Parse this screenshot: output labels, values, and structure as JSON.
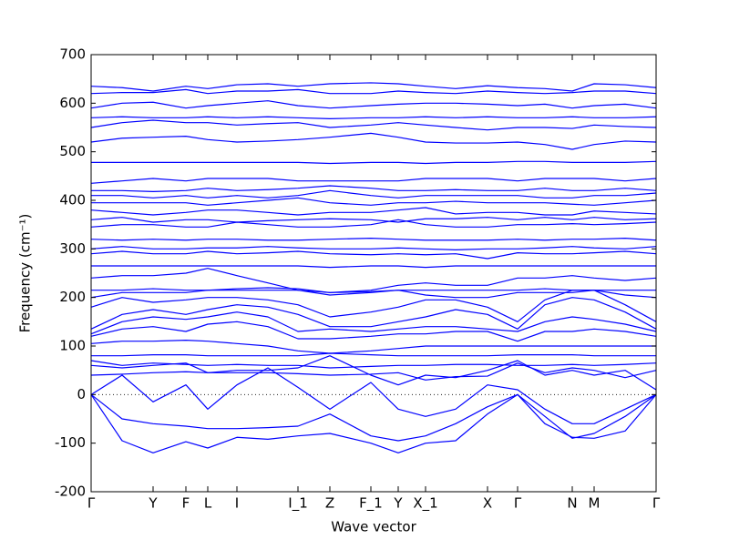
{
  "chart_data": {
    "type": "line",
    "xlabel": "Wave vector",
    "ylabel": "Frequency (cm⁻¹)",
    "color": "#0000ff",
    "zero_line": true,
    "xlim": [
      0,
      620
    ],
    "ylim": [
      -200,
      700
    ],
    "yticks": [
      -200,
      -100,
      0,
      100,
      200,
      300,
      400,
      500,
      600,
      700
    ],
    "xticks": [
      {
        "value": 0,
        "label": "Γ"
      },
      {
        "value": 68,
        "label": "Y"
      },
      {
        "value": 104,
        "label": "F"
      },
      {
        "value": 128,
        "label": "L"
      },
      {
        "value": 160,
        "label": "I"
      },
      {
        "value": 227,
        "label": "I_1"
      },
      {
        "value": 262,
        "label": "Z"
      },
      {
        "value": 307,
        "label": "F_1"
      },
      {
        "value": 337,
        "label": "Y"
      },
      {
        "value": 367,
        "label": "X_1"
      },
      {
        "value": 435,
        "label": "X"
      },
      {
        "value": 468,
        "label": "Γ"
      },
      {
        "value": 528,
        "label": "N"
      },
      {
        "value": 552,
        "label": "M"
      },
      {
        "value": 620,
        "label": "Γ"
      }
    ],
    "x": [
      0,
      34,
      68,
      104,
      128,
      160,
      194,
      227,
      262,
      307,
      337,
      367,
      400,
      435,
      468,
      498,
      528,
      552,
      586,
      620
    ],
    "series": [
      {
        "values": [
          0,
          -95,
          -120,
          -97,
          -110,
          -88,
          -92,
          -85,
          -80,
          -100,
          -120,
          -100,
          -95,
          -40,
          0,
          -60,
          -88,
          -90,
          -75,
          0
        ]
      },
      {
        "values": [
          0,
          -50,
          -60,
          -65,
          -70,
          -70,
          -68,
          -65,
          -40,
          -85,
          -95,
          -85,
          -60,
          -25,
          0,
          -45,
          -90,
          -80,
          -45,
          0
        ]
      },
      {
        "values": [
          0,
          40,
          -15,
          20,
          -30,
          20,
          55,
          15,
          -30,
          25,
          -30,
          -45,
          -30,
          20,
          10,
          -30,
          -60,
          -60,
          -30,
          0
        ]
      },
      {
        "values": [
          60,
          55,
          60,
          65,
          45,
          50,
          50,
          55,
          80,
          40,
          20,
          40,
          35,
          50,
          70,
          40,
          50,
          40,
          50,
          10
        ]
      },
      {
        "values": [
          40,
          42,
          45,
          47,
          45,
          45,
          45,
          43,
          40,
          42,
          45,
          30,
          37,
          38,
          65,
          45,
          55,
          50,
          35,
          50
        ]
      },
      {
        "values": [
          70,
          60,
          65,
          62,
          60,
          62,
          60,
          60,
          55,
          58,
          60,
          60,
          62,
          62,
          60,
          60,
          62,
          60,
          62,
          65
        ]
      },
      {
        "values": [
          80,
          80,
          82,
          82,
          80,
          80,
          80,
          80,
          85,
          82,
          80,
          80,
          80,
          80,
          82,
          82,
          82,
          80,
          80,
          80
        ]
      },
      {
        "values": [
          105,
          110,
          110,
          112,
          110,
          105,
          100,
          90,
          85,
          90,
          95,
          100,
          100,
          100,
          100,
          100,
          100,
          100,
          100,
          100
        ]
      },
      {
        "values": [
          120,
          135,
          140,
          130,
          145,
          150,
          140,
          115,
          115,
          120,
          125,
          125,
          130,
          130,
          110,
          130,
          130,
          135,
          130,
          120
        ]
      },
      {
        "values": [
          125,
          150,
          160,
          155,
          160,
          170,
          160,
          130,
          135,
          130,
          135,
          140,
          140,
          135,
          130,
          150,
          160,
          155,
          145,
          130
        ]
      },
      {
        "values": [
          135,
          165,
          175,
          165,
          175,
          185,
          180,
          165,
          140,
          140,
          150,
          160,
          175,
          165,
          135,
          185,
          200,
          195,
          170,
          135
        ]
      },
      {
        "values": [
          180,
          200,
          190,
          195,
          200,
          200,
          195,
          185,
          160,
          170,
          180,
          195,
          195,
          180,
          150,
          195,
          215,
          215,
          185,
          150
        ]
      },
      {
        "values": [
          200,
          210,
          210,
          210,
          215,
          215,
          215,
          215,
          205,
          210,
          215,
          205,
          200,
          200,
          210,
          210,
          210,
          215,
          205,
          200
        ]
      },
      {
        "values": [
          215,
          215,
          218,
          215,
          215,
          218,
          220,
          218,
          210,
          212,
          215,
          215,
          215,
          215,
          215,
          218,
          215,
          215,
          215,
          215
        ]
      },
      {
        "values": [
          240,
          245,
          245,
          250,
          260,
          245,
          230,
          215,
          210,
          215,
          225,
          230,
          225,
          225,
          240,
          240,
          245,
          240,
          235,
          240
        ]
      },
      {
        "values": [
          265,
          265,
          265,
          265,
          265,
          265,
          265,
          265,
          262,
          265,
          265,
          262,
          265,
          265,
          265,
          265,
          265,
          265,
          265,
          265
        ]
      },
      {
        "values": [
          290,
          295,
          290,
          290,
          295,
          290,
          292,
          295,
          290,
          288,
          290,
          288,
          290,
          280,
          292,
          290,
          290,
          292,
          295,
          290
        ]
      },
      {
        "values": [
          300,
          305,
          300,
          300,
          302,
          302,
          305,
          302,
          300,
          300,
          302,
          300,
          298,
          300,
          300,
          302,
          305,
          302,
          300,
          305
        ]
      },
      {
        "values": [
          320,
          318,
          320,
          318,
          320,
          320,
          318,
          318,
          320,
          322,
          320,
          318,
          318,
          318,
          320,
          318,
          320,
          320,
          322,
          318
        ]
      },
      {
        "values": [
          345,
          350,
          350,
          345,
          345,
          355,
          350,
          345,
          345,
          350,
          360,
          350,
          345,
          345,
          350,
          350,
          352,
          350,
          352,
          355
        ]
      },
      {
        "values": [
          360,
          365,
          355,
          360,
          360,
          355,
          358,
          360,
          362,
          360,
          355,
          362,
          362,
          365,
          360,
          365,
          360,
          365,
          360,
          362
        ]
      },
      {
        "values": [
          380,
          375,
          370,
          375,
          380,
          380,
          375,
          370,
          375,
          375,
          380,
          385,
          372,
          375,
          375,
          370,
          370,
          378,
          375,
          372
        ]
      },
      {
        "values": [
          395,
          395,
          395,
          395,
          390,
          395,
          400,
          405,
          395,
          390,
          395,
          395,
          398,
          395,
          395,
          395,
          392,
          390,
          395,
          400
        ]
      },
      {
        "values": [
          410,
          410,
          405,
          410,
          405,
          410,
          405,
          410,
          420,
          410,
          405,
          410,
          410,
          410,
          410,
          405,
          405,
          410,
          410,
          415
        ]
      },
      {
        "values": [
          420,
          420,
          418,
          420,
          425,
          420,
          422,
          425,
          430,
          425,
          420,
          420,
          422,
          420,
          420,
          425,
          420,
          420,
          425,
          420
        ]
      },
      {
        "values": [
          435,
          440,
          445,
          440,
          445,
          445,
          445,
          440,
          440,
          440,
          440,
          445,
          445,
          445,
          440,
          445,
          445,
          445,
          440,
          445
        ]
      },
      {
        "values": [
          478,
          478,
          478,
          478,
          478,
          478,
          478,
          478,
          476,
          478,
          478,
          476,
          478,
          478,
          480,
          480,
          478,
          478,
          478,
          480
        ]
      },
      {
        "values": [
          520,
          528,
          530,
          532,
          525,
          520,
          522,
          525,
          530,
          538,
          530,
          520,
          518,
          518,
          520,
          515,
          505,
          515,
          522,
          520
        ]
      },
      {
        "values": [
          550,
          560,
          565,
          560,
          560,
          555,
          558,
          560,
          550,
          555,
          560,
          555,
          550,
          545,
          550,
          550,
          548,
          555,
          552,
          550
        ]
      },
      {
        "values": [
          570,
          572,
          570,
          570,
          572,
          570,
          572,
          570,
          568,
          570,
          570,
          572,
          570,
          572,
          570,
          570,
          572,
          570,
          570,
          572
        ]
      },
      {
        "values": [
          590,
          600,
          602,
          590,
          595,
          600,
          605,
          595,
          590,
          595,
          598,
          600,
          600,
          598,
          595,
          598,
          590,
          595,
          598,
          590
        ]
      },
      {
        "values": [
          620,
          622,
          622,
          628,
          620,
          625,
          625,
          628,
          620,
          620,
          625,
          622,
          620,
          625,
          622,
          620,
          622,
          625,
          625,
          620
        ]
      },
      {
        "values": [
          635,
          632,
          625,
          635,
          630,
          638,
          640,
          635,
          640,
          642,
          640,
          635,
          630,
          636,
          632,
          630,
          625,
          640,
          638,
          632
        ]
      }
    ]
  }
}
